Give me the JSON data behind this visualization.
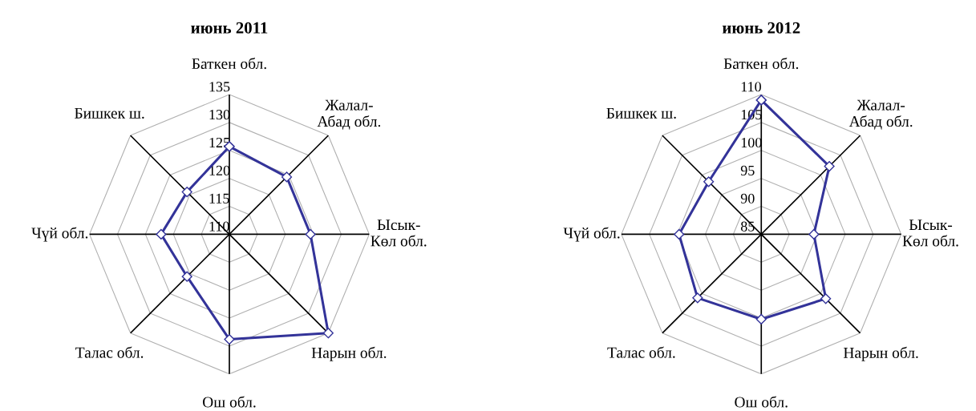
{
  "chart_data": [
    {
      "type": "radar",
      "title": "июнь 2011",
      "categories": [
        "Баткен обл.",
        "Жалал-\nАбад обл.",
        "Ысык-\nКөл обл.",
        "Нарын обл.",
        "Ош обл.",
        "Талас обл.",
        "Чүй обл.",
        "Бишкек ш."
      ],
      "series": [
        {
          "color": "#333399",
          "values": [
            125.7,
            124.5,
            124.5,
            135,
            128.8,
            120.7,
            122.2,
            120.7
          ]
        }
      ],
      "ylim": [
        110,
        135
      ],
      "yticks": [
        110,
        115,
        120,
        125,
        130,
        135
      ],
      "grid": true,
      "marker": "diamond",
      "line_style": "solid"
    },
    {
      "type": "radar",
      "title": "июнь 2012",
      "categories": [
        "Баткен обл.",
        "Жалал-\nАбад обл.",
        "Ысык-\nКөл обл.",
        "Нарын обл.",
        "Ош обл.",
        "Талас обл.",
        "Чүй обл.",
        "Бишкек ш."
      ],
      "series": [
        {
          "color": "#333399",
          "values": [
            109,
            102.2,
            94.4,
            101.3,
            100.2,
            101.1,
            99.7,
            98.3
          ]
        }
      ],
      "ylim": [
        85,
        110
      ],
      "yticks": [
        85,
        90,
        95,
        100,
        105,
        110
      ],
      "grid": true,
      "marker": "diamond",
      "line_style": "solid"
    }
  ]
}
